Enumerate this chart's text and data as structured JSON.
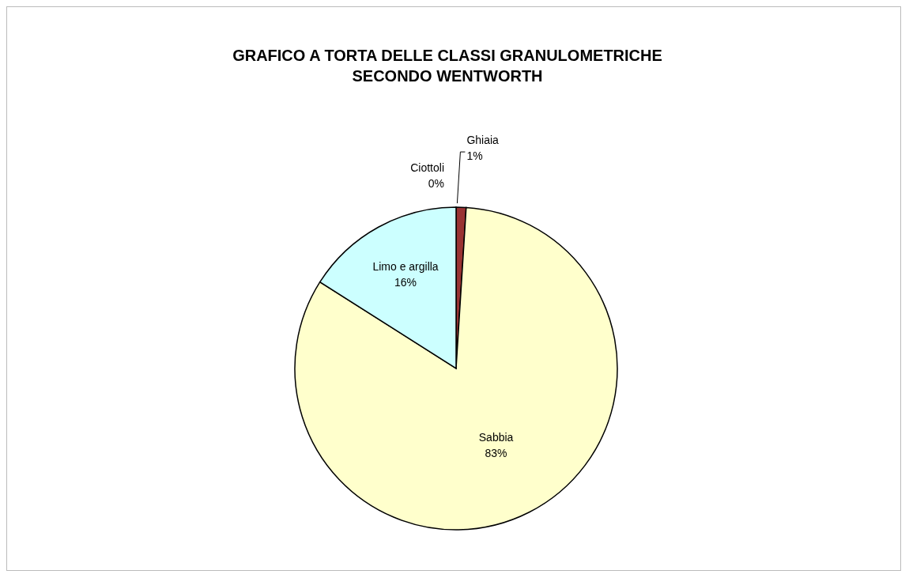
{
  "chart_data": {
    "type": "pie",
    "title": "GRAFICO A TORTA DELLE CLASSI GRANULOMETRICHE\nSECONDO WENTWORTH",
    "categories": [
      "Ciottoli",
      "Ghiaia",
      "Sabbia",
      "Limo e argilla"
    ],
    "values": [
      0,
      1,
      83,
      16
    ],
    "value_labels": [
      "0%",
      "1%",
      "83%",
      "16%"
    ],
    "colors": [
      "#333399",
      "#993333",
      "#ffffcc",
      "#ccffff"
    ],
    "legend": false
  }
}
